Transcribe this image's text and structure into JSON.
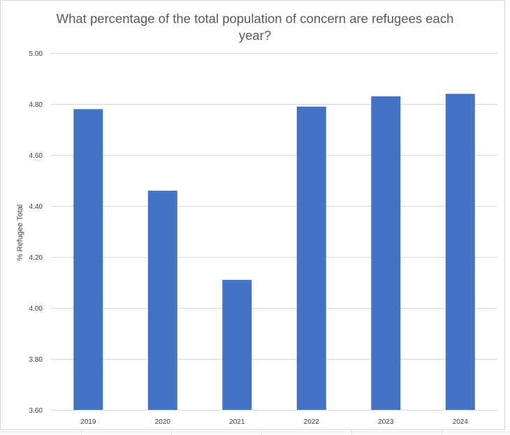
{
  "chart_data": {
    "type": "bar",
    "title": "What percentage of the total population of concern are refugees each year?",
    "title_lines": [
      "What percentage of the total population of concern are refugees each",
      "year?"
    ],
    "xlabel": "",
    "ylabel": "% Refugee Total",
    "categories": [
      "2019",
      "2020",
      "2021",
      "2022",
      "2023",
      "2024"
    ],
    "values": [
      4.78,
      4.46,
      4.11,
      4.79,
      4.83,
      4.84
    ],
    "ylim": [
      3.6,
      5.0
    ],
    "yticks": [
      3.6,
      3.8,
      4.0,
      4.2,
      4.4,
      4.6,
      4.8,
      5.0
    ],
    "ytick_labels": [
      "3.60",
      "3.80",
      "4.00",
      "4.20",
      "4.40",
      "4.60",
      "4.80",
      "5.00"
    ],
    "grid": true,
    "legend": "none",
    "bar_color": "#4472C4",
    "gridline_color": "#d9d9d9"
  }
}
